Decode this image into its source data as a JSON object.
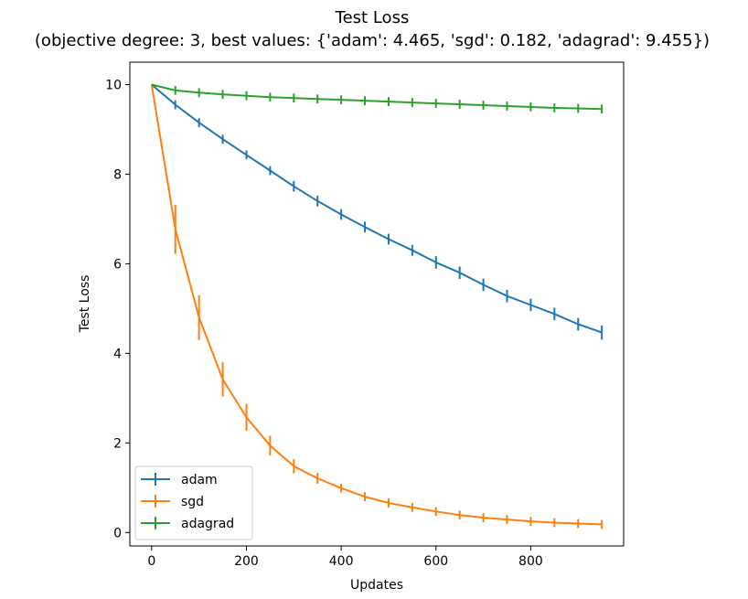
{
  "chart_data": {
    "type": "line",
    "title": "Test Loss",
    "subtitle": "(objective degree: 3,  best values: {'adam': 4.465, 'sgd': 0.182, 'adagrad': 9.455})",
    "xlabel": "Updates",
    "ylabel": "Test Loss",
    "xlim": [
      -46,
      996
    ],
    "ylim": [
      -0.3,
      10.5
    ],
    "xticks": [
      0,
      200,
      400,
      600,
      800
    ],
    "yticks": [
      0,
      2,
      4,
      6,
      8,
      10
    ],
    "grid": false,
    "legend_position": "lower-left",
    "x": [
      0,
      50,
      100,
      150,
      200,
      250,
      300,
      350,
      400,
      450,
      500,
      550,
      600,
      650,
      700,
      750,
      800,
      850,
      900,
      950
    ],
    "series": [
      {
        "name": "adam",
        "color": "#1f77b4",
        "values": [
          10.0,
          9.55,
          9.15,
          8.78,
          8.43,
          8.08,
          7.73,
          7.4,
          7.1,
          6.82,
          6.55,
          6.3,
          6.03,
          5.8,
          5.53,
          5.28,
          5.08,
          4.88,
          4.65,
          4.465
        ],
        "errors": [
          0.02,
          0.05,
          0.06,
          0.08,
          0.08,
          0.1,
          0.12,
          0.12,
          0.12,
          0.12,
          0.12,
          0.12,
          0.14,
          0.14,
          0.14,
          0.14,
          0.14,
          0.14,
          0.14,
          0.16
        ]
      },
      {
        "name": "sgd",
        "color": "#ff7f0e",
        "values": [
          10.0,
          6.77,
          4.8,
          3.42,
          2.57,
          1.94,
          1.48,
          1.21,
          0.99,
          0.8,
          0.66,
          0.56,
          0.47,
          0.39,
          0.33,
          0.29,
          0.25,
          0.22,
          0.2,
          0.182
        ],
        "errors": [
          0.0,
          0.55,
          0.5,
          0.38,
          0.3,
          0.22,
          0.16,
          0.12,
          0.09,
          0.07,
          0.06,
          0.05,
          0.04,
          0.03,
          0.02,
          0.02,
          0.01,
          0.01,
          0.01,
          0.01
        ]
      },
      {
        "name": "adagrad",
        "color": "#2ca02c",
        "values": [
          10.0,
          9.87,
          9.82,
          9.78,
          9.75,
          9.72,
          9.7,
          9.68,
          9.66,
          9.64,
          9.62,
          9.6,
          9.58,
          9.56,
          9.54,
          9.52,
          9.5,
          9.48,
          9.47,
          9.455
        ],
        "errors": [
          0.0,
          0.01,
          0.01,
          0.01,
          0.01,
          0.01,
          0.01,
          0.01,
          0.01,
          0.01,
          0.01,
          0.01,
          0.01,
          0.01,
          0.01,
          0.01,
          0.01,
          0.01,
          0.01,
          0.01
        ]
      }
    ]
  }
}
